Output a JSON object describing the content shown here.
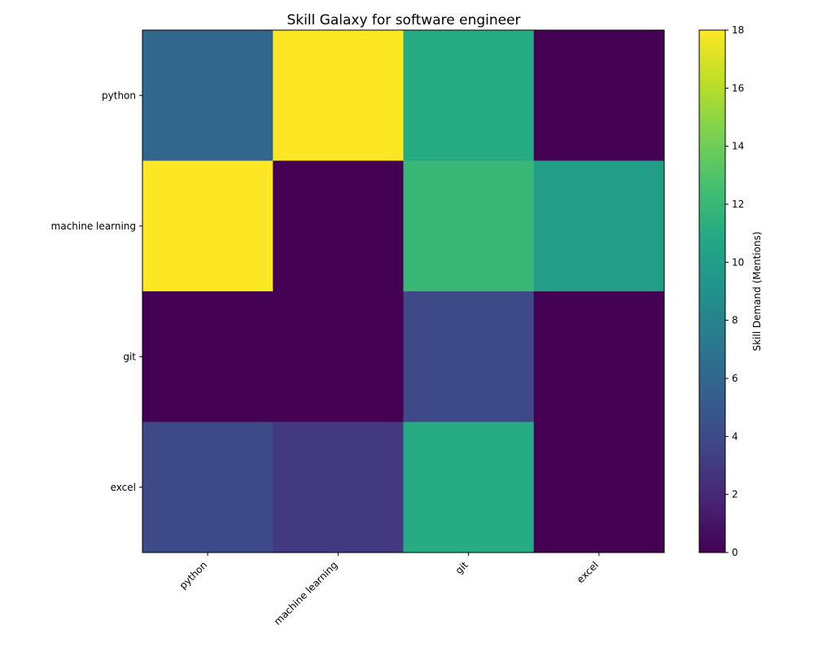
{
  "chart_data": {
    "type": "heatmap",
    "title": "Skill Galaxy for software engineer",
    "x_categories": [
      "python",
      "machine learning",
      "git",
      "excel"
    ],
    "y_categories": [
      "python",
      "machine learning",
      "git",
      "excel"
    ],
    "values": [
      [
        6,
        18,
        11,
        0
      ],
      [
        18,
        0,
        12,
        10
      ],
      [
        0,
        0,
        4,
        0
      ],
      [
        4,
        3,
        11,
        0
      ]
    ],
    "colorbar": {
      "label": "Skill Demand (Mentions)",
      "range": [
        0,
        18
      ],
      "ticks": [
        0,
        2,
        4,
        6,
        8,
        10,
        12,
        14,
        16,
        18
      ],
      "colormap": "viridis"
    }
  }
}
